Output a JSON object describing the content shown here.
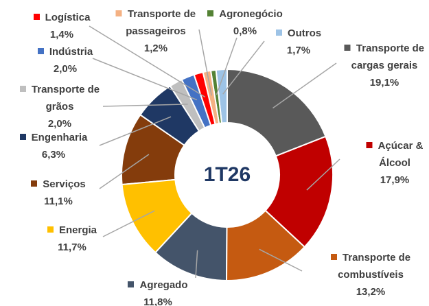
{
  "chart_data": {
    "type": "donut",
    "center_text": "1T26",
    "categories": [
      "Transporte de cargas gerais",
      "Açúcar & Álcool",
      "Transporte de combustíveis",
      "Agregado",
      "Energia",
      "Serviços",
      "Engenharia",
      "Transporte de grãos",
      "Indústria",
      "Logística",
      "Transporte de passageiros",
      "Agronegócio",
      "Outros"
    ],
    "values": [
      19.1,
      17.9,
      13.2,
      11.8,
      11.7,
      11.1,
      6.3,
      2.0,
      2.0,
      1.4,
      1.2,
      0.8,
      1.7
    ],
    "value_labels": [
      "19,1%",
      "17,9%",
      "13,2%",
      "11,8%",
      "11,7%",
      "11,1%",
      "6,3%",
      "2,0%",
      "2,0%",
      "1,4%",
      "1,2%",
      "0,8%",
      "1,7%"
    ],
    "colors": [
      "#595959",
      "#c00000",
      "#c55a11",
      "#44546a",
      "#ffc000",
      "#843c0c",
      "#1f3864",
      "#bfbfbf",
      "#4472c4",
      "#ff0000",
      "#f4b183",
      "#548235",
      "#9dc3e6"
    ]
  }
}
